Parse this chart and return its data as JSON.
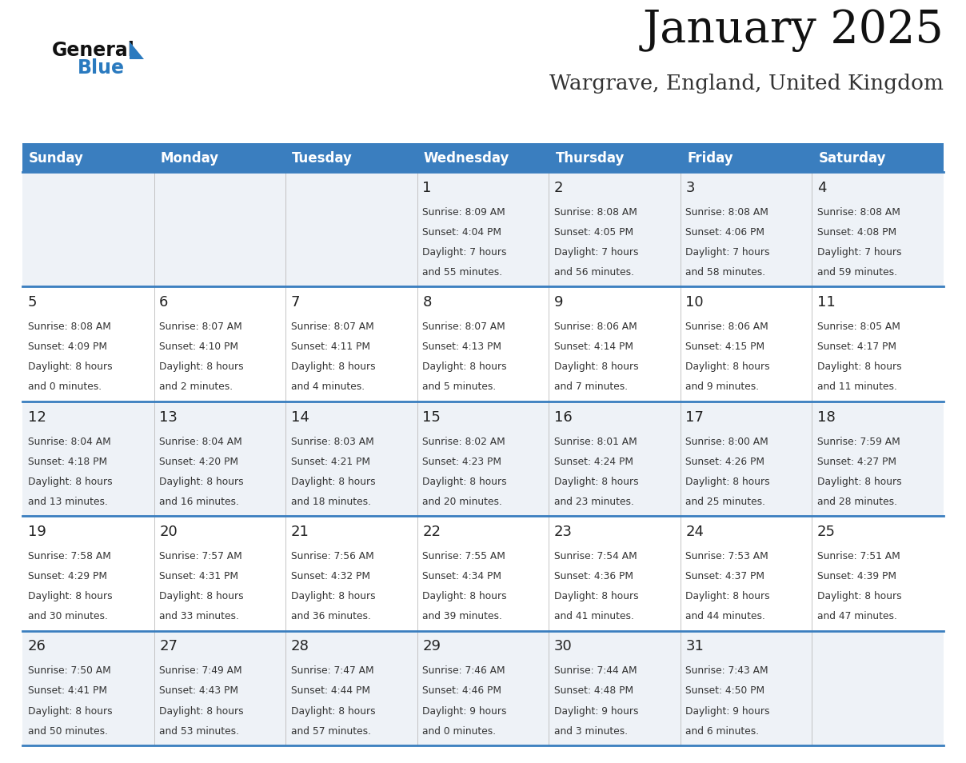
{
  "title": "January 2025",
  "subtitle": "Wargrave, England, United Kingdom",
  "days_of_week": [
    "Sunday",
    "Monday",
    "Tuesday",
    "Wednesday",
    "Thursday",
    "Friday",
    "Saturday"
  ],
  "header_bg": "#3a7ebf",
  "header_text": "#ffffff",
  "row_bg_odd": "#eef2f7",
  "row_bg_even": "#ffffff",
  "cell_border": "#3a7ebf",
  "day_num_color": "#222222",
  "info_color": "#333333",
  "title_color": "#111111",
  "subtitle_color": "#333333",
  "logo_general_color": "#111111",
  "logo_blue_color": "#2a7abf",
  "calendar_data": [
    [
      null,
      null,
      null,
      {
        "day": 1,
        "sunrise": "8:09 AM",
        "sunset": "4:04 PM",
        "daylight": "7 hours and 55 minutes."
      },
      {
        "day": 2,
        "sunrise": "8:08 AM",
        "sunset": "4:05 PM",
        "daylight": "7 hours and 56 minutes."
      },
      {
        "day": 3,
        "sunrise": "8:08 AM",
        "sunset": "4:06 PM",
        "daylight": "7 hours and 58 minutes."
      },
      {
        "day": 4,
        "sunrise": "8:08 AM",
        "sunset": "4:08 PM",
        "daylight": "7 hours and 59 minutes."
      }
    ],
    [
      {
        "day": 5,
        "sunrise": "8:08 AM",
        "sunset": "4:09 PM",
        "daylight": "8 hours and 0 minutes."
      },
      {
        "day": 6,
        "sunrise": "8:07 AM",
        "sunset": "4:10 PM",
        "daylight": "8 hours and 2 minutes."
      },
      {
        "day": 7,
        "sunrise": "8:07 AM",
        "sunset": "4:11 PM",
        "daylight": "8 hours and 4 minutes."
      },
      {
        "day": 8,
        "sunrise": "8:07 AM",
        "sunset": "4:13 PM",
        "daylight": "8 hours and 5 minutes."
      },
      {
        "day": 9,
        "sunrise": "8:06 AM",
        "sunset": "4:14 PM",
        "daylight": "8 hours and 7 minutes."
      },
      {
        "day": 10,
        "sunrise": "8:06 AM",
        "sunset": "4:15 PM",
        "daylight": "8 hours and 9 minutes."
      },
      {
        "day": 11,
        "sunrise": "8:05 AM",
        "sunset": "4:17 PM",
        "daylight": "8 hours and 11 minutes."
      }
    ],
    [
      {
        "day": 12,
        "sunrise": "8:04 AM",
        "sunset": "4:18 PM",
        "daylight": "8 hours and 13 minutes."
      },
      {
        "day": 13,
        "sunrise": "8:04 AM",
        "sunset": "4:20 PM",
        "daylight": "8 hours and 16 minutes."
      },
      {
        "day": 14,
        "sunrise": "8:03 AM",
        "sunset": "4:21 PM",
        "daylight": "8 hours and 18 minutes."
      },
      {
        "day": 15,
        "sunrise": "8:02 AM",
        "sunset": "4:23 PM",
        "daylight": "8 hours and 20 minutes."
      },
      {
        "day": 16,
        "sunrise": "8:01 AM",
        "sunset": "4:24 PM",
        "daylight": "8 hours and 23 minutes."
      },
      {
        "day": 17,
        "sunrise": "8:00 AM",
        "sunset": "4:26 PM",
        "daylight": "8 hours and 25 minutes."
      },
      {
        "day": 18,
        "sunrise": "7:59 AM",
        "sunset": "4:27 PM",
        "daylight": "8 hours and 28 minutes."
      }
    ],
    [
      {
        "day": 19,
        "sunrise": "7:58 AM",
        "sunset": "4:29 PM",
        "daylight": "8 hours and 30 minutes."
      },
      {
        "day": 20,
        "sunrise": "7:57 AM",
        "sunset": "4:31 PM",
        "daylight": "8 hours and 33 minutes."
      },
      {
        "day": 21,
        "sunrise": "7:56 AM",
        "sunset": "4:32 PM",
        "daylight": "8 hours and 36 minutes."
      },
      {
        "day": 22,
        "sunrise": "7:55 AM",
        "sunset": "4:34 PM",
        "daylight": "8 hours and 39 minutes."
      },
      {
        "day": 23,
        "sunrise": "7:54 AM",
        "sunset": "4:36 PM",
        "daylight": "8 hours and 41 minutes."
      },
      {
        "day": 24,
        "sunrise": "7:53 AM",
        "sunset": "4:37 PM",
        "daylight": "8 hours and 44 minutes."
      },
      {
        "day": 25,
        "sunrise": "7:51 AM",
        "sunset": "4:39 PM",
        "daylight": "8 hours and 47 minutes."
      }
    ],
    [
      {
        "day": 26,
        "sunrise": "7:50 AM",
        "sunset": "4:41 PM",
        "daylight": "8 hours and 50 minutes."
      },
      {
        "day": 27,
        "sunrise": "7:49 AM",
        "sunset": "4:43 PM",
        "daylight": "8 hours and 53 minutes."
      },
      {
        "day": 28,
        "sunrise": "7:47 AM",
        "sunset": "4:44 PM",
        "daylight": "8 hours and 57 minutes."
      },
      {
        "day": 29,
        "sunrise": "7:46 AM",
        "sunset": "4:46 PM",
        "daylight": "9 hours and 0 minutes."
      },
      {
        "day": 30,
        "sunrise": "7:44 AM",
        "sunset": "4:48 PM",
        "daylight": "9 hours and 3 minutes."
      },
      {
        "day": 31,
        "sunrise": "7:43 AM",
        "sunset": "4:50 PM",
        "daylight": "9 hours and 6 minutes."
      },
      null
    ]
  ]
}
